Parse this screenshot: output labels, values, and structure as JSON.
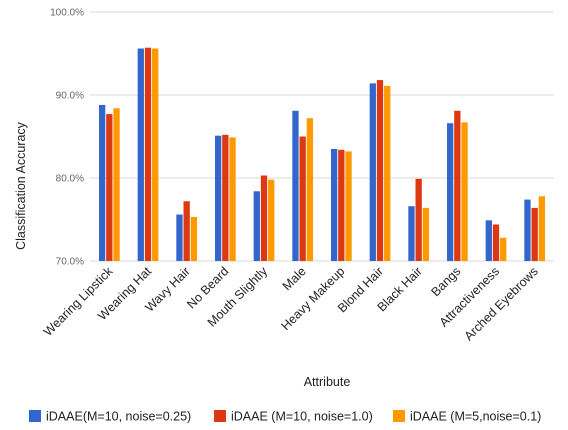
{
  "chart_data": {
    "type": "bar",
    "title": "",
    "xlabel": "Attribute",
    "ylabel": "Classification Accuracy",
    "ylim": [
      70,
      100
    ],
    "yticks": [
      70,
      80,
      90,
      100
    ],
    "ytick_labels": [
      "70.0%",
      "80.0%",
      "90.0%",
      "100.0%"
    ],
    "grid": true,
    "legend_position": "bottom",
    "categories": [
      "Wearing Lipstick",
      "Wearing Hat",
      "Wavy Hair",
      "No Beard",
      "Mouth Slightly",
      "Male",
      "Heavy Makeup",
      "Blond Hair",
      "Black Hair",
      "Bangs",
      "Attractiveness",
      "Arched Eyebrows"
    ],
    "series": [
      {
        "name": "iDAAE(M=10, noise=0.25)",
        "color": "#3366cc",
        "values": [
          88.8,
          95.6,
          75.6,
          85.1,
          78.4,
          88.1,
          83.5,
          91.4,
          76.6,
          86.6,
          74.9,
          77.4
        ]
      },
      {
        "name": "iDAAE (M=10, noise=1.0)",
        "color": "#dc3912",
        "values": [
          87.7,
          95.7,
          77.2,
          85.2,
          80.3,
          85.0,
          83.4,
          91.8,
          79.9,
          88.1,
          74.4,
          76.4
        ]
      },
      {
        "name": "iDAAE (M=5,noise=0.1)",
        "color": "#ff9900",
        "values": [
          88.4,
          95.6,
          75.3,
          84.9,
          79.8,
          87.2,
          83.2,
          91.1,
          76.4,
          86.7,
          72.8,
          77.8
        ]
      }
    ]
  }
}
